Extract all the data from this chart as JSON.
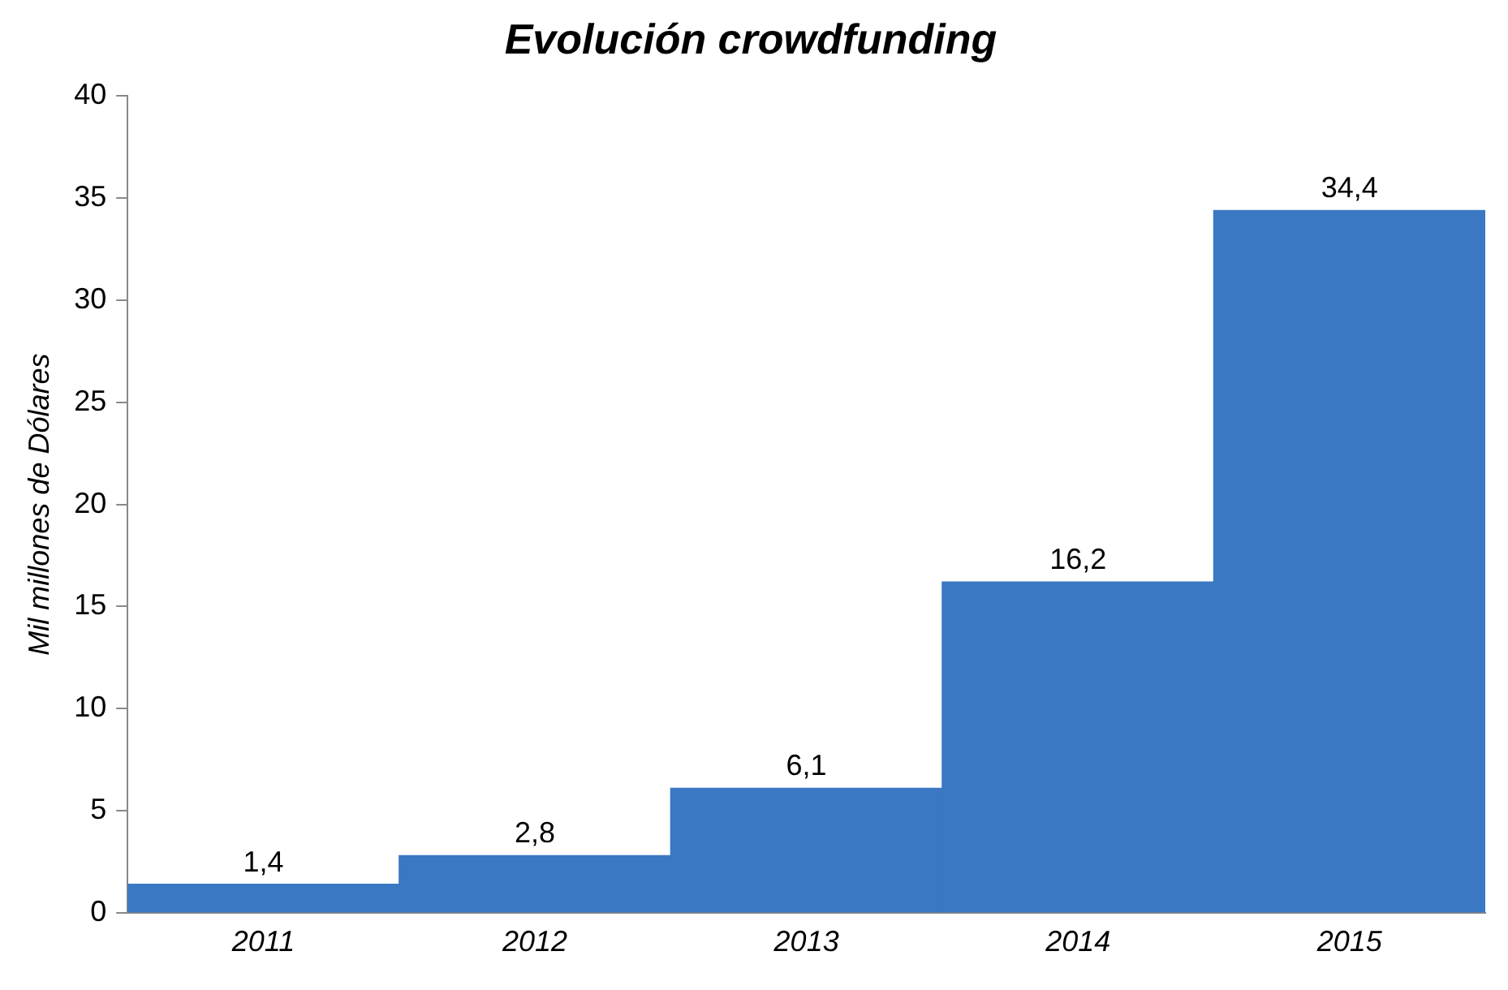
{
  "chart_data": {
    "type": "bar",
    "title": "Evolución crowdfunding",
    "ylabel": "Mil millones de Dólares",
    "categories": [
      "2011",
      "2012",
      "2013",
      "2014",
      "2015"
    ],
    "values": [
      1.4,
      2.8,
      6.1,
      16.2,
      34.4
    ],
    "value_labels": [
      "1,4",
      "2,8",
      "6,1",
      "16,2",
      "34,4"
    ],
    "color": "#3a78c4",
    "ylim": [
      0,
      40
    ],
    "yticks": [
      0,
      5,
      10,
      15,
      20,
      25,
      30,
      35,
      40
    ],
    "grid": false,
    "legend": false
  }
}
